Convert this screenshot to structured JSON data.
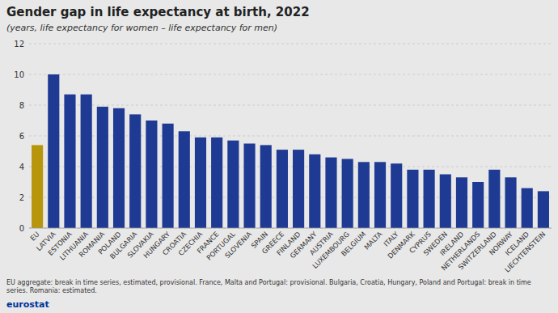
{
  "chart_data": {
    "type": "bar",
    "title": "Gender gap in life expectancy at birth, 2022",
    "subtitle": "(years, life expectancy for women – life expectancy for men)",
    "annotations": [
      "EU aggregate: break in time series, estimated, provisional. France, Malta and Portugal: provisional. Bulgaria, Croatia, Hungary, Poland and Portugal: break in time series. Romania: estimated.",
      "eurostat"
    ],
    "categories": [
      "EU",
      "LATVIA",
      "ESTONIA",
      "LITHUANIA",
      "ROMANIA",
      "POLAND",
      "BULGARIA",
      "SLOVAKIA",
      "HUNGARY",
      "CROATIA",
      "CZECHIA",
      "FRANCE",
      "PORTUGAL",
      "SLOVENIA",
      "SPAIN",
      "GREECE",
      "FINLAND",
      "GERMANY",
      "AUSTRIA",
      "LUXEMBOURG",
      "BELGIUM",
      "MALTA",
      "ITALY",
      "DENMARK",
      "CYPRUS",
      "SWEDEN",
      "IRELAND",
      "NETHERLANDS",
      "SWITZERLAND",
      "NORWAY",
      "ICELAND",
      "LIECHTENSTEIN"
    ],
    "values": [
      5.4,
      10.0,
      8.7,
      8.7,
      7.9,
      7.8,
      7.4,
      7.0,
      6.8,
      6.3,
      5.9,
      5.9,
      5.7,
      5.5,
      5.4,
      5.1,
      5.1,
      4.8,
      4.6,
      4.5,
      4.3,
      4.3,
      4.2,
      3.8,
      3.8,
      3.5,
      3.3,
      3.0,
      3.8,
      3.3,
      2.6,
      2.4
    ],
    "colors": [
      "#B8960C",
      "#1F3A93",
      "#1F3A93",
      "#1F3A93",
      "#1F3A93",
      "#1F3A93",
      "#1F3A93",
      "#1F3A93",
      "#1F3A93",
      "#1F3A93",
      "#1F3A93",
      "#1F3A93",
      "#1F3A93",
      "#1F3A93",
      "#1F3A93",
      "#1F3A93",
      "#1F3A93",
      "#1F3A93",
      "#1F3A93",
      "#1F3A93",
      "#1F3A93",
      "#1F3A93",
      "#1F3A93",
      "#1F3A93",
      "#1F3A93",
      "#1F3A93",
      "#1F3A93",
      "#1F3A93",
      "#1F3A93",
      "#1F3A93",
      "#1F3A93",
      "#1F3A93"
    ],
    "ylim": [
      0,
      12
    ],
    "yticks": [
      0,
      2,
      4,
      6,
      8,
      10,
      12
    ],
    "grid": true
  }
}
